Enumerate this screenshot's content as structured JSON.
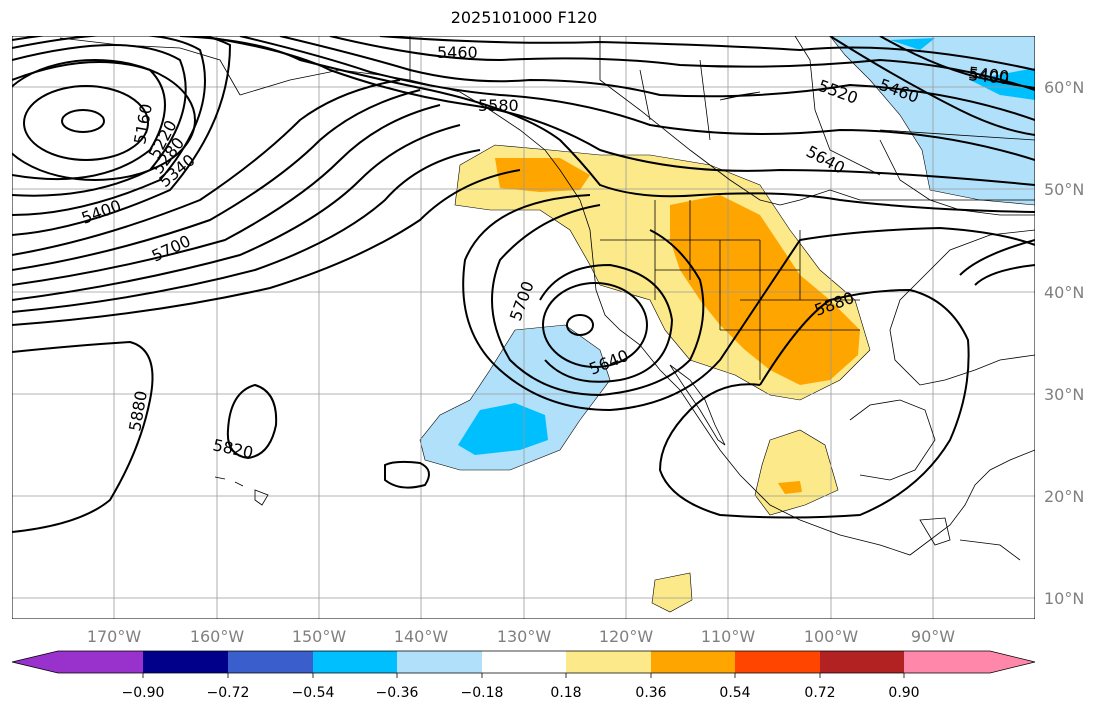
{
  "map": {
    "title": "2025101000 F120",
    "lat_labels": [
      "60°N",
      "50°N",
      "40°N",
      "30°N",
      "20°N",
      "10°N"
    ],
    "lon_labels": [
      "170°W",
      "160°W",
      "150°W",
      "140°W",
      "130°W",
      "120°W",
      "110°W",
      "100°W",
      "90°W"
    ],
    "contour_labels": [
      "5460",
      "5580",
      "5400",
      "5520",
      "5460",
      "5400",
      "5640",
      "5160",
      "5220",
      "5280",
      "5340",
      "5400",
      "5700",
      "5700",
      "5640",
      "5880",
      "5880",
      "5820"
    ],
    "colorbar": {
      "tick_labels": [
        "−0.90",
        "−0.72",
        "−0.54",
        "−0.36",
        "−0.18",
        "0.18",
        "0.36",
        "0.54",
        "0.72",
        "0.90"
      ],
      "colors": [
        "#9932cc",
        "#00008b",
        "#3a5fcd",
        "#00bfff",
        "#b0e0fa",
        "#ffffff",
        "#fce98a",
        "#ffa500",
        "#ff4500",
        "#b22222",
        "#ff88aa"
      ]
    }
  }
}
